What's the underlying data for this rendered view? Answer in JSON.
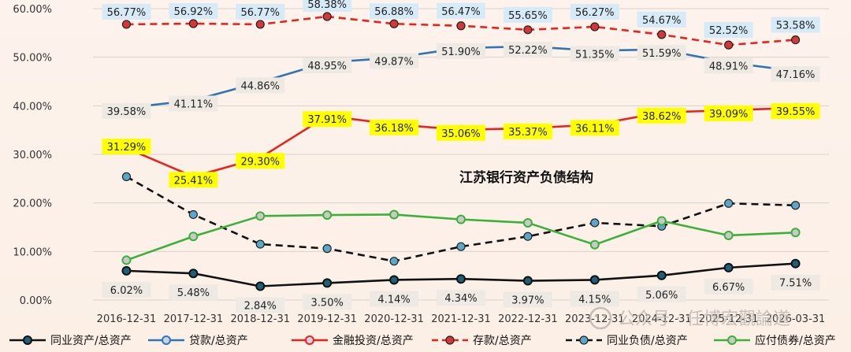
{
  "chart_data": {
    "type": "line",
    "title": "江苏银行资产负债结构",
    "categories": [
      "2016-12-31",
      "2017-12-31",
      "2018-12-31",
      "2019-12-31",
      "2020-12-31",
      "2021-12-31",
      "2022-12-31",
      "2023-12-31",
      "2024-12-31",
      "2025-12-31",
      "2026-03-31"
    ],
    "yticks": [
      "0.00%",
      "10.00%",
      "20.00%",
      "30.00%",
      "40.00%",
      "50.00%",
      "60.00%"
    ],
    "ylim": [
      0,
      60
    ],
    "grid": true,
    "legend_position": "bottom",
    "series": [
      {
        "name": "同业资产/总资产",
        "color": "#111111",
        "dash": false,
        "values": [
          6.02,
          5.48,
          2.84,
          3.5,
          4.14,
          4.34,
          3.97,
          4.15,
          5.06,
          6.67,
          7.51
        ],
        "labels": [
          "6.02%",
          "5.48%",
          "2.84%",
          "3.50%",
          "4.14%",
          "4.34%",
          "3.97%",
          "4.15%",
          "5.06%",
          "6.67%",
          "7.51%"
        ],
        "label_style": "plain"
      },
      {
        "name": "贷款/总资产",
        "color": "#2f75b5",
        "dash": false,
        "values": [
          39.58,
          41.11,
          44.86,
          48.95,
          49.87,
          51.9,
          52.22,
          51.35,
          51.59,
          48.91,
          47.16
        ],
        "labels": [
          "39.58%",
          "41.11%",
          "44.86%",
          "48.95%",
          "49.87%",
          "51.90%",
          "52.22%",
          "51.35%",
          "51.59%",
          "48.91%",
          "47.16%"
        ],
        "label_style": "plain"
      },
      {
        "name": "金融投资/总资产",
        "color": "#e8231b",
        "dash": false,
        "values": [
          31.29,
          25.41,
          29.3,
          37.91,
          36.18,
          35.06,
          35.37,
          36.11,
          38.62,
          39.09,
          39.55
        ],
        "labels": [
          "31.29%",
          "25.41%",
          "29.30%",
          "37.91%",
          "36.18%",
          "35.06%",
          "35.37%",
          "36.11%",
          "38.62%",
          "39.09%",
          "39.55%"
        ],
        "label_style": "yellow"
      },
      {
        "name": "存款/总资产",
        "color": "#e8231b",
        "dash": true,
        "values": [
          56.77,
          56.92,
          56.77,
          58.38,
          56.88,
          56.47,
          55.65,
          56.27,
          54.67,
          52.52,
          53.58
        ],
        "labels": [
          "56.77%",
          "56.92%",
          "56.77%",
          "58.38%",
          "56.88%",
          "56.47%",
          "55.65%",
          "56.27%",
          "54.67%",
          "52.52%",
          "53.58%"
        ],
        "label_style": "blue"
      },
      {
        "name": "同业负债/总资产",
        "color": "#111111",
        "dash": true,
        "values": [
          25.4,
          17.6,
          11.5,
          10.6,
          8.0,
          11.0,
          13.1,
          15.9,
          15.2,
          19.9,
          19.5
        ],
        "labels": [],
        "label_style": "none"
      },
      {
        "name": "应付债券/总资产",
        "color": "#3cb13a",
        "dash": false,
        "values": [
          8.2,
          13.1,
          17.3,
          17.5,
          17.6,
          16.6,
          15.9,
          11.4,
          16.3,
          13.3,
          13.9
        ],
        "labels": [],
        "label_style": "none"
      }
    ]
  },
  "watermark": {
    "text": "公众号 · 任博宏觀論道"
  }
}
